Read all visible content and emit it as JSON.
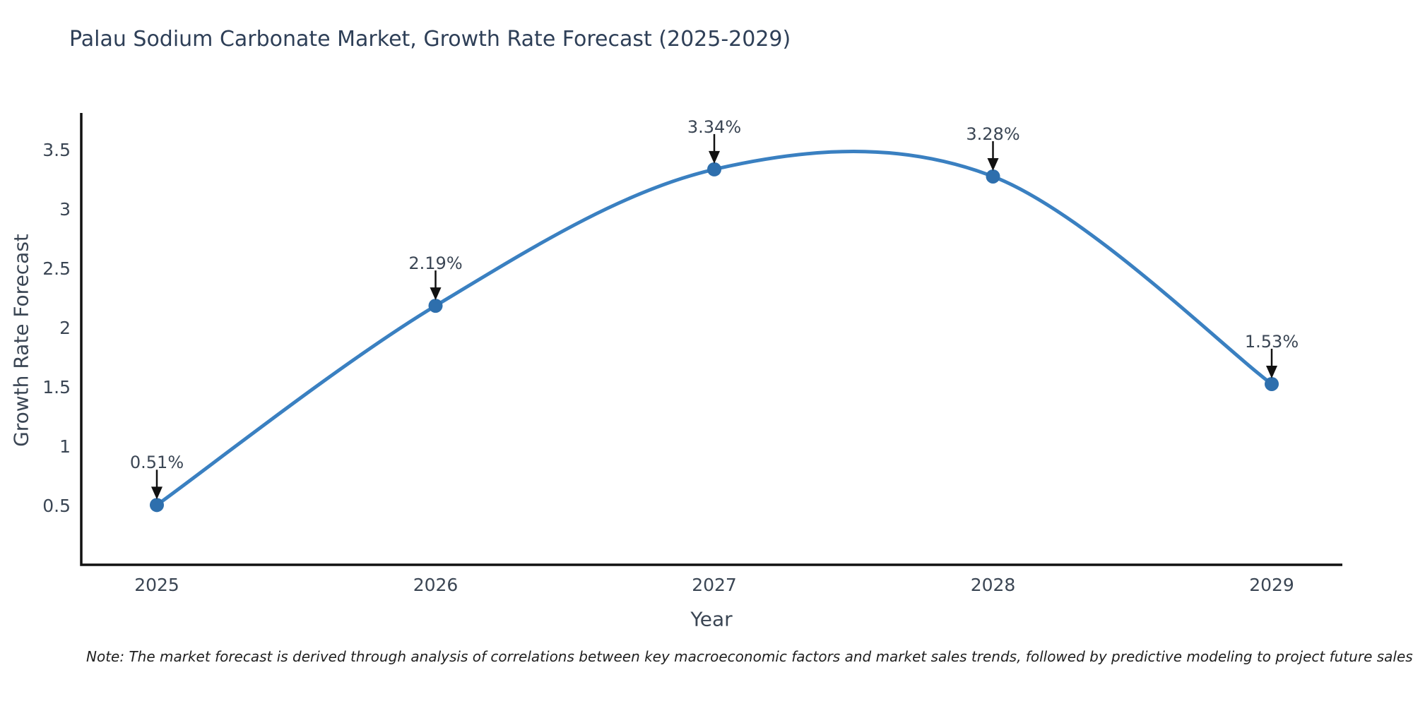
{
  "note": "Note: The market forecast is derived through analysis of correlations between key macroeconomic factors and market sales trends, followed by predictive modeling to project future sales",
  "chart_data": {
    "type": "line",
    "title": "Palau Sodium Carbonate Market, Growth Rate Forecast (2025-2029)",
    "xlabel": "Year",
    "ylabel": "Growth Rate Forecast",
    "categories": [
      "2025",
      "2026",
      "2027",
      "2028",
      "2029"
    ],
    "series": [
      {
        "name": "Growth Rate Forecast",
        "values": [
          0.51,
          2.19,
          3.34,
          3.28,
          1.53
        ]
      }
    ],
    "data_labels": [
      "0.51%",
      "2.19%",
      "3.34%",
      "3.28%",
      "1.53%"
    ],
    "ytick_labels": [
      "0.5",
      "1",
      "1.5",
      "2",
      "2.5",
      "3",
      "3.5"
    ],
    "ytick_values": [
      0.5,
      1,
      1.5,
      2,
      2.5,
      3,
      3.5
    ],
    "ylim": [
      0,
      3.82
    ],
    "curve": "spline",
    "grid": false,
    "legend_position": "none",
    "colors": {
      "line": "#3a80c1",
      "marker": "#2e6fad",
      "axis": "#111111",
      "arrow": "#111111",
      "tick_text": "#3b4654",
      "title_text": "#2e3f57"
    }
  }
}
